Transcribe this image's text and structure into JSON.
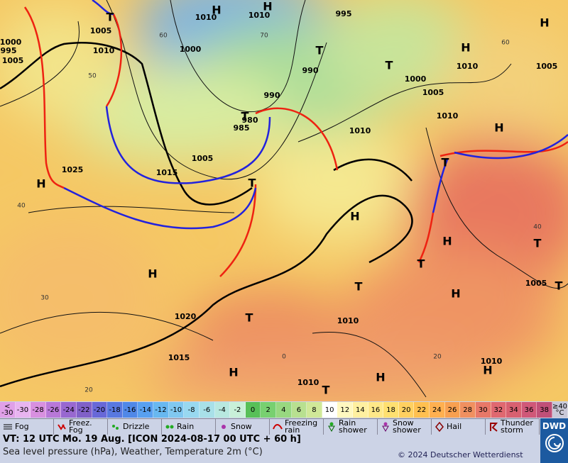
{
  "map": {
    "isobar_labels": [
      1010,
      1010,
      995,
      1005,
      1010,
      1000,
      995,
      1005,
      1000,
      990,
      990,
      980,
      985,
      1000,
      1005,
      1010,
      1010,
      1005,
      1015,
      1025,
      1010,
      1005,
      1005,
      1020,
      1010,
      1015,
      1010,
      1010
    ],
    "centers": [
      "H",
      "H",
      "T",
      "T",
      "T",
      "H",
      "H",
      "H",
      "H",
      "H",
      "H",
      "T",
      "T",
      "H",
      "T",
      "T",
      "H",
      "T",
      "H",
      "H",
      "H",
      "T",
      "T",
      "T",
      "T"
    ],
    "grid_labels": [
      60,
      70,
      50,
      40,
      30,
      20,
      0,
      20,
      40,
      60
    ]
  },
  "color_scale": {
    "labels": [
      "< -30",
      -30,
      -28,
      -26,
      -24,
      -22,
      -20,
      -18,
      -16,
      -14,
      -12,
      -10,
      -8,
      -6,
      -4,
      -2,
      0,
      2,
      4,
      6,
      8,
      10,
      12,
      14,
      16,
      18,
      20,
      22,
      24,
      26,
      28,
      30,
      32,
      34,
      36,
      38,
      "≥40 °C"
    ]
  },
  "legend": [
    "Fog",
    "Freez. Fog",
    "Drizzle",
    "Rain",
    "Snow",
    "Freezing rain",
    "Rain shower",
    "Snow shower",
    "Hail",
    "Thunder storm"
  ],
  "footer": {
    "valid_time": "VT: 12 UTC Mo.  19 Aug. [ICON 2024-08-17  00 UTC + 60 h]",
    "description": "Sea level pressure (hPa), Weather, Temperature 2m (°C)",
    "copyright": "© 2024 Deutscher Wetterdienst",
    "logo": "DWD"
  }
}
